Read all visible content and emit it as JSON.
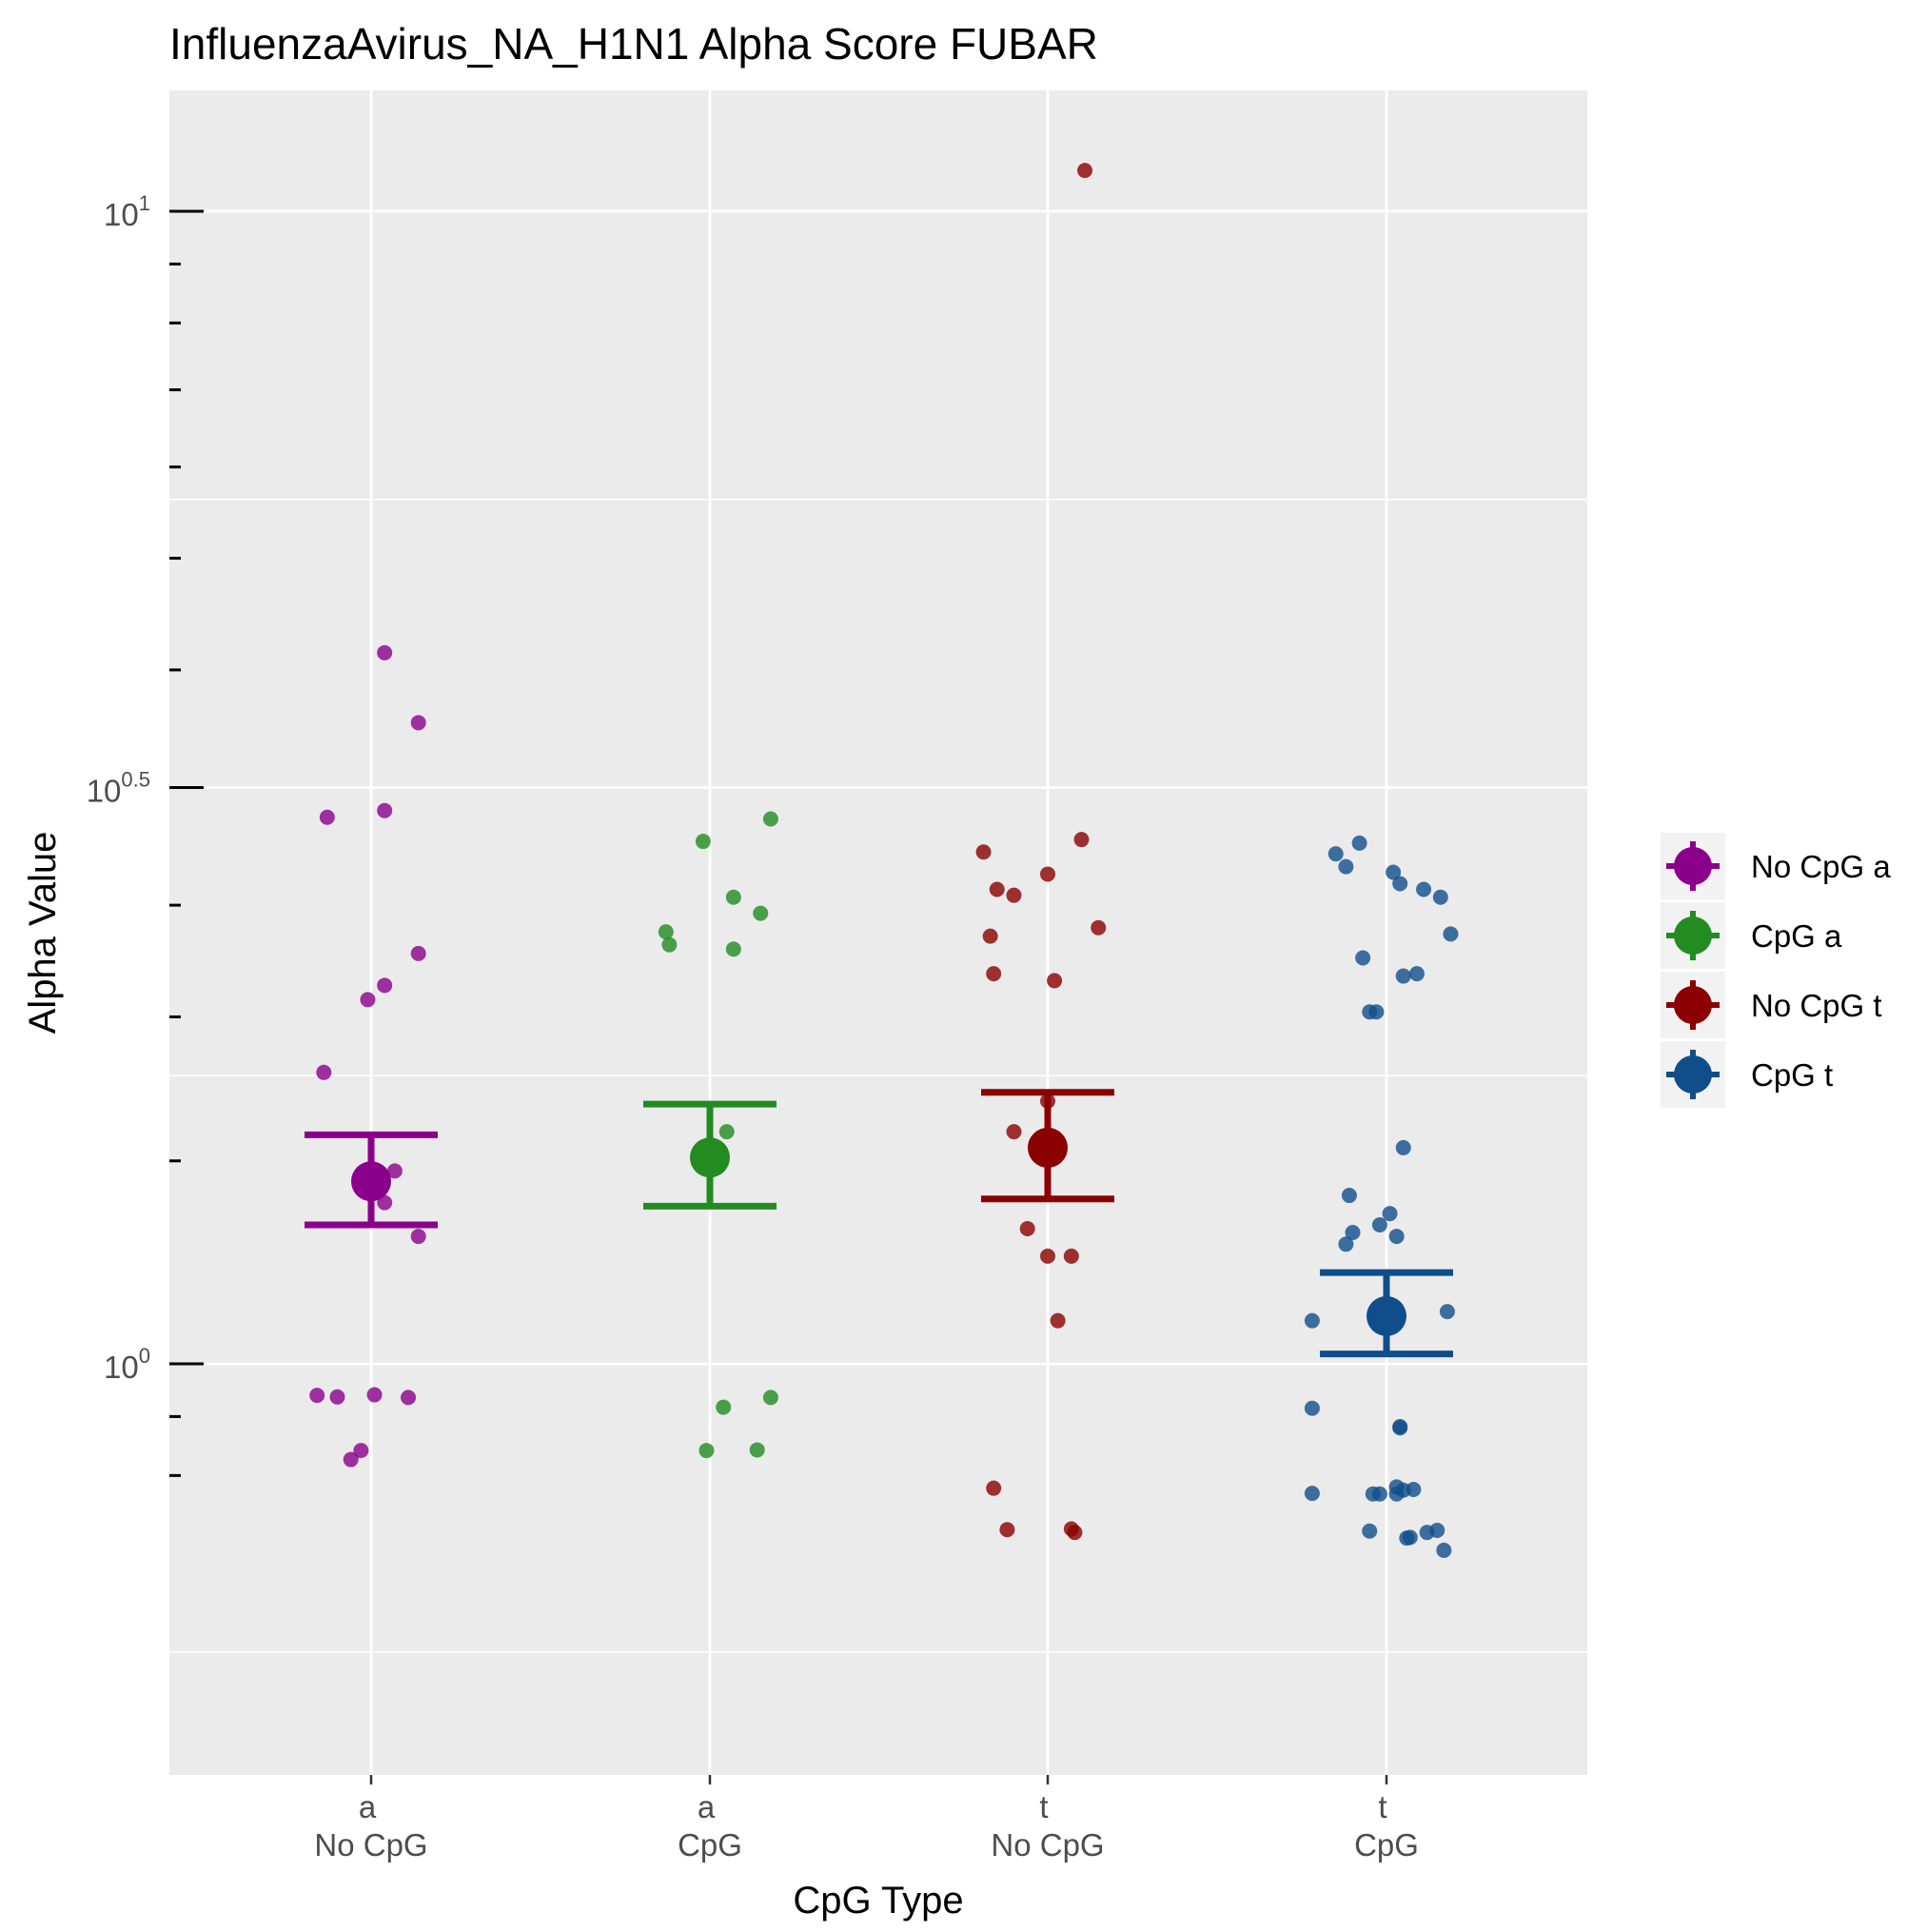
{
  "chart_data": {
    "type": "scatter",
    "title": "InfluenzaAvirus_NA_H1N1 Alpha Score FUBAR",
    "xlabel": "CpG Type",
    "ylabel": "Alpha Value",
    "y_scale": "log10",
    "ylim": [
      0.74,
      11.0
    ],
    "grid": true,
    "legend_position": "right",
    "y_ticks": [
      {
        "value": 1,
        "label": "10",
        "sup": "0"
      },
      {
        "value": 3.162,
        "label": "10",
        "sup": "0.5"
      },
      {
        "value": 10,
        "label": "10",
        "sup": "1"
      }
    ],
    "y_minor_ticks": [
      0.8,
      0.9,
      1.5,
      2,
      2.5,
      4,
      5,
      6,
      7,
      8,
      9
    ],
    "categories": [
      {
        "top": "a",
        "bottom": "No CpG"
      },
      {
        "top": "a",
        "bottom": "CpG"
      },
      {
        "top": "t",
        "bottom": "No CpG"
      },
      {
        "top": "t",
        "bottom": "CpG"
      }
    ],
    "series": [
      {
        "name": "No CpG a",
        "color": "#8B008B",
        "category_index": 0,
        "mean": 1.44,
        "ci": [
          1.32,
          1.58
        ],
        "points": [
          {
            "jitter": 0.04,
            "y": 4.14
          },
          {
            "jitter": 0.14,
            "y": 3.6
          },
          {
            "jitter": -0.13,
            "y": 2.98
          },
          {
            "jitter": 0.04,
            "y": 3.02
          },
          {
            "jitter": 0.14,
            "y": 2.27
          },
          {
            "jitter": 0.04,
            "y": 2.13
          },
          {
            "jitter": -0.01,
            "y": 2.07
          },
          {
            "jitter": -0.14,
            "y": 1.79
          },
          {
            "jitter": 0.07,
            "y": 1.47
          },
          {
            "jitter": 0.04,
            "y": 1.38
          },
          {
            "jitter": 0.14,
            "y": 1.29
          },
          {
            "jitter": -0.16,
            "y": 0.939
          },
          {
            "jitter": -0.1,
            "y": 0.936
          },
          {
            "jitter": 0.01,
            "y": 0.94
          },
          {
            "jitter": 0.11,
            "y": 0.935
          },
          {
            "jitter": -0.03,
            "y": 0.841
          },
          {
            "jitter": -0.06,
            "y": 0.826
          }
        ]
      },
      {
        "name": "CpG a",
        "color": "#228B22",
        "category_index": 1,
        "mean": 1.51,
        "ci": [
          1.37,
          1.68
        ],
        "points": [
          {
            "jitter": 0.18,
            "y": 2.97
          },
          {
            "jitter": -0.02,
            "y": 2.84
          },
          {
            "jitter": 0.07,
            "y": 2.54
          },
          {
            "jitter": 0.15,
            "y": 2.46
          },
          {
            "jitter": -0.13,
            "y": 2.37
          },
          {
            "jitter": -0.12,
            "y": 2.31
          },
          {
            "jitter": 0.07,
            "y": 2.29
          },
          {
            "jitter": 0.05,
            "y": 1.59
          },
          {
            "jitter": 0.18,
            "y": 0.935
          },
          {
            "jitter": 0.04,
            "y": 0.917
          },
          {
            "jitter": -0.01,
            "y": 0.841
          },
          {
            "jitter": 0.14,
            "y": 0.842
          }
        ]
      },
      {
        "name": "No CpG t",
        "color": "#8B0000",
        "category_index": 2,
        "mean": 1.54,
        "ci": [
          1.39,
          1.72
        ],
        "points": [
          {
            "jitter": 0.11,
            "y": 10.85
          },
          {
            "jitter": 0.1,
            "y": 2.85
          },
          {
            "jitter": -0.19,
            "y": 2.78
          },
          {
            "jitter": 0.0,
            "y": 2.66
          },
          {
            "jitter": -0.15,
            "y": 2.58
          },
          {
            "jitter": -0.1,
            "y": 2.55
          },
          {
            "jitter": 0.15,
            "y": 2.39
          },
          {
            "jitter": -0.17,
            "y": 2.35
          },
          {
            "jitter": -0.16,
            "y": 2.18
          },
          {
            "jitter": 0.02,
            "y": 2.15
          },
          {
            "jitter": 0.0,
            "y": 1.69
          },
          {
            "jitter": 0.03,
            "y": 1.56
          },
          {
            "jitter": -0.1,
            "y": 1.59
          },
          {
            "jitter": -0.06,
            "y": 1.31
          },
          {
            "jitter": 0.0,
            "y": 1.24
          },
          {
            "jitter": 0.07,
            "y": 1.24
          },
          {
            "jitter": 0.03,
            "y": 1.09
          },
          {
            "jitter": -0.16,
            "y": 0.78
          },
          {
            "jitter": -0.12,
            "y": 0.718
          },
          {
            "jitter": 0.07,
            "y": 0.719
          },
          {
            "jitter": 0.08,
            "y": 0.714
          }
        ]
      },
      {
        "name": "CpG t",
        "color": "#104E8B",
        "category_index": 3,
        "mean": 1.1,
        "ci": [
          1.02,
          1.2
        ],
        "points": [
          {
            "jitter": -0.08,
            "y": 2.83
          },
          {
            "jitter": -0.15,
            "y": 2.77
          },
          {
            "jitter": -0.12,
            "y": 2.7
          },
          {
            "jitter": 0.02,
            "y": 2.67
          },
          {
            "jitter": 0.04,
            "y": 2.61
          },
          {
            "jitter": 0.11,
            "y": 2.58
          },
          {
            "jitter": 0.16,
            "y": 2.54
          },
          {
            "jitter": 0.19,
            "y": 2.36
          },
          {
            "jitter": -0.07,
            "y": 2.25
          },
          {
            "jitter": 0.05,
            "y": 2.17
          },
          {
            "jitter": 0.09,
            "y": 2.18
          },
          {
            "jitter": -0.03,
            "y": 2.02
          },
          {
            "jitter": -0.05,
            "y": 2.02
          },
          {
            "jitter": 0.05,
            "y": 1.54
          },
          {
            "jitter": -0.11,
            "y": 1.4
          },
          {
            "jitter": 0.01,
            "y": 1.35
          },
          {
            "jitter": -0.02,
            "y": 1.32
          },
          {
            "jitter": -0.1,
            "y": 1.3
          },
          {
            "jitter": 0.03,
            "y": 1.29
          },
          {
            "jitter": -0.12,
            "y": 1.27
          },
          {
            "jitter": 0.18,
            "y": 1.11
          },
          {
            "jitter": -0.22,
            "y": 1.09
          },
          {
            "jitter": -0.22,
            "y": 0.915
          },
          {
            "jitter": 0.04,
            "y": 0.882
          },
          {
            "jitter": 0.04,
            "y": 0.88
          },
          {
            "jitter": 0.03,
            "y": 0.782
          },
          {
            "jitter": 0.05,
            "y": 0.777
          },
          {
            "jitter": 0.08,
            "y": 0.778
          },
          {
            "jitter": -0.22,
            "y": 0.772
          },
          {
            "jitter": -0.04,
            "y": 0.771
          },
          {
            "jitter": -0.02,
            "y": 0.771
          },
          {
            "jitter": 0.03,
            "y": 0.771
          },
          {
            "jitter": -0.05,
            "y": 0.716
          },
          {
            "jitter": 0.15,
            "y": 0.717
          },
          {
            "jitter": 0.12,
            "y": 0.714
          },
          {
            "jitter": 0.07,
            "y": 0.707
          },
          {
            "jitter": 0.06,
            "y": 0.706
          },
          {
            "jitter": 0.17,
            "y": 0.689
          }
        ]
      }
    ]
  }
}
